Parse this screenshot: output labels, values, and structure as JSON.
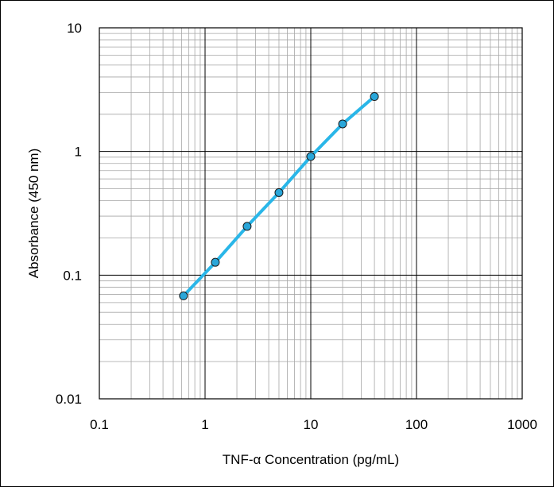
{
  "chart_data": {
    "type": "scatter",
    "title": "",
    "xlabel": "TNF-α Concentration (pg/mL)",
    "ylabel": "Absorbance (450 nm)",
    "x_scale": "log",
    "y_scale": "log",
    "xlim": [
      0.1,
      1000
    ],
    "ylim": [
      0.01,
      10
    ],
    "x_ticks": [
      "0.1",
      "1",
      "10",
      "100",
      "1000"
    ],
    "y_ticks": [
      "0.01",
      "0.1",
      "1",
      "10"
    ],
    "grid": true,
    "legend": "none",
    "series": [
      {
        "x": [
          0.625,
          1.25,
          2.5,
          5,
          10,
          20,
          40
        ],
        "y": [
          0.068,
          0.127,
          0.248,
          0.465,
          0.91,
          1.67,
          2.78
        ],
        "line_color": "#29B6E8",
        "marker_color": "#29A6D9",
        "marker_edge": "#1a1a1a"
      }
    ]
  }
}
